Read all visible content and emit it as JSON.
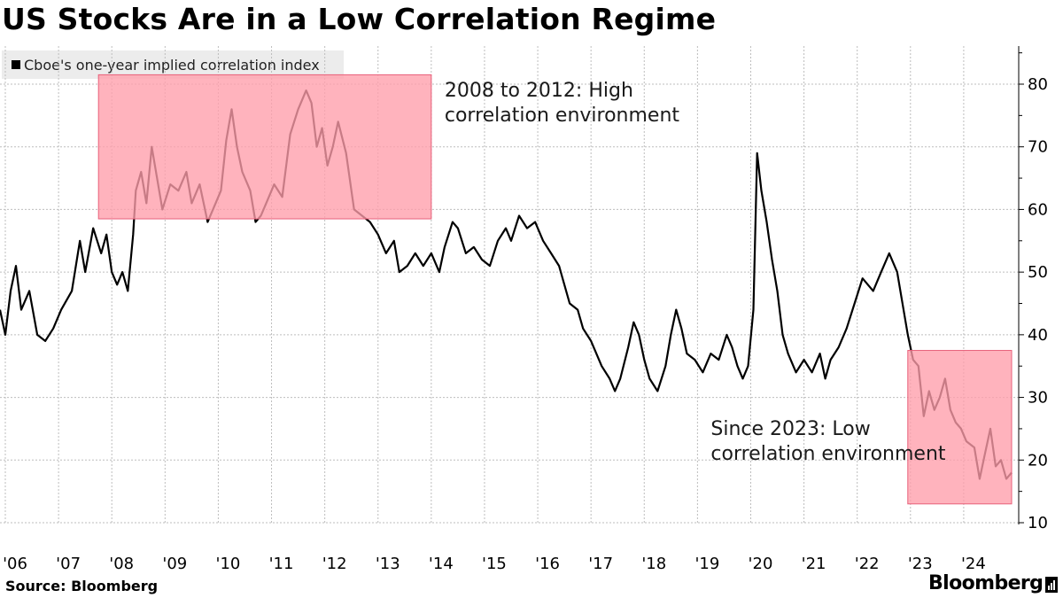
{
  "title": "US Stocks Are in a Low Correlation Regime",
  "source": "Source: Bloomberg",
  "brand": "Bloomberg",
  "chart_data": {
    "type": "line",
    "title": "US Stocks Are in a Low Correlation Regime",
    "legend": {
      "placement": "top-left",
      "entries": [
        "Cboe's one-year implied correlation index"
      ]
    },
    "grid": true,
    "x_ticks": [
      "'06",
      "'07",
      "'08",
      "'09",
      "'10",
      "'11",
      "'12",
      "'13",
      "'14",
      "'15",
      "'16",
      "'17",
      "'18",
      "'19",
      "'20",
      "'21",
      "'22",
      "'23",
      "'24"
    ],
    "xlim": [
      2006.0,
      2025.0
    ],
    "y_ticks": [
      10,
      20,
      30,
      40,
      50,
      60,
      70,
      80
    ],
    "ylim": [
      8,
      85
    ],
    "y_axis_side": "right",
    "line_color": "#000000",
    "highlight_color": "#ff9dab",
    "series": [
      {
        "name": "Cboe's one-year implied correlation index",
        "points": [
          [
            2006.0,
            44
          ],
          [
            2006.1,
            40
          ],
          [
            2006.2,
            47
          ],
          [
            2006.3,
            51
          ],
          [
            2006.4,
            44
          ],
          [
            2006.55,
            47
          ],
          [
            2006.7,
            40
          ],
          [
            2006.85,
            39
          ],
          [
            2007.0,
            41
          ],
          [
            2007.15,
            44
          ],
          [
            2007.35,
            47
          ],
          [
            2007.5,
            55
          ],
          [
            2007.6,
            50
          ],
          [
            2007.75,
            57
          ],
          [
            2007.9,
            53
          ],
          [
            2008.0,
            56
          ],
          [
            2008.1,
            50
          ],
          [
            2008.2,
            48
          ],
          [
            2008.3,
            50
          ],
          [
            2008.4,
            47
          ],
          [
            2008.5,
            56
          ],
          [
            2008.55,
            63
          ],
          [
            2008.65,
            66
          ],
          [
            2008.75,
            61
          ],
          [
            2008.85,
            70
          ],
          [
            2008.95,
            65
          ],
          [
            2009.05,
            60
          ],
          [
            2009.2,
            64
          ],
          [
            2009.35,
            63
          ],
          [
            2009.5,
            66
          ],
          [
            2009.6,
            61
          ],
          [
            2009.75,
            64
          ],
          [
            2009.9,
            58
          ],
          [
            2010.05,
            61
          ],
          [
            2010.15,
            63
          ],
          [
            2010.25,
            71
          ],
          [
            2010.35,
            76
          ],
          [
            2010.45,
            70
          ],
          [
            2010.55,
            66
          ],
          [
            2010.7,
            63
          ],
          [
            2010.8,
            58
          ],
          [
            2010.9,
            59
          ],
          [
            2011.0,
            61
          ],
          [
            2011.15,
            64
          ],
          [
            2011.3,
            62
          ],
          [
            2011.45,
            72
          ],
          [
            2011.6,
            76
          ],
          [
            2011.75,
            79
          ],
          [
            2011.85,
            77
          ],
          [
            2011.95,
            70
          ],
          [
            2012.05,
            73
          ],
          [
            2012.15,
            67
          ],
          [
            2012.25,
            70
          ],
          [
            2012.35,
            74
          ],
          [
            2012.5,
            69
          ],
          [
            2012.65,
            60
          ],
          [
            2012.8,
            59
          ],
          [
            2012.95,
            58
          ],
          [
            2013.1,
            56
          ],
          [
            2013.25,
            53
          ],
          [
            2013.4,
            55
          ],
          [
            2013.5,
            50
          ],
          [
            2013.65,
            51
          ],
          [
            2013.8,
            53
          ],
          [
            2013.95,
            51
          ],
          [
            2014.1,
            53
          ],
          [
            2014.25,
            50
          ],
          [
            2014.35,
            54
          ],
          [
            2014.5,
            58
          ],
          [
            2014.6,
            57
          ],
          [
            2014.75,
            53
          ],
          [
            2014.9,
            54
          ],
          [
            2015.05,
            52
          ],
          [
            2015.2,
            51
          ],
          [
            2015.35,
            55
          ],
          [
            2015.5,
            57
          ],
          [
            2015.6,
            55
          ],
          [
            2015.75,
            59
          ],
          [
            2015.9,
            57
          ],
          [
            2016.05,
            58
          ],
          [
            2016.2,
            55
          ],
          [
            2016.35,
            53
          ],
          [
            2016.5,
            51
          ],
          [
            2016.6,
            48
          ],
          [
            2016.7,
            45
          ],
          [
            2016.85,
            44
          ],
          [
            2016.95,
            41
          ],
          [
            2017.1,
            39
          ],
          [
            2017.2,
            37
          ],
          [
            2017.3,
            35
          ],
          [
            2017.45,
            33
          ],
          [
            2017.55,
            31
          ],
          [
            2017.65,
            33
          ],
          [
            2017.8,
            38
          ],
          [
            2017.9,
            42
          ],
          [
            2018.0,
            40
          ],
          [
            2018.1,
            36
          ],
          [
            2018.2,
            33
          ],
          [
            2018.35,
            31
          ],
          [
            2018.5,
            35
          ],
          [
            2018.6,
            40
          ],
          [
            2018.7,
            44
          ],
          [
            2018.8,
            41
          ],
          [
            2018.9,
            37
          ],
          [
            2019.05,
            36
          ],
          [
            2019.2,
            34
          ],
          [
            2019.35,
            37
          ],
          [
            2019.5,
            36
          ],
          [
            2019.65,
            40
          ],
          [
            2019.75,
            38
          ],
          [
            2019.85,
            35
          ],
          [
            2019.95,
            33
          ],
          [
            2020.05,
            35
          ],
          [
            2020.15,
            44
          ],
          [
            2020.22,
            69
          ],
          [
            2020.3,
            63
          ],
          [
            2020.4,
            58
          ],
          [
            2020.5,
            52
          ],
          [
            2020.6,
            47
          ],
          [
            2020.7,
            40
          ],
          [
            2020.8,
            37
          ],
          [
            2020.95,
            34
          ],
          [
            2021.1,
            36
          ],
          [
            2021.25,
            34
          ],
          [
            2021.4,
            37
          ],
          [
            2021.5,
            33
          ],
          [
            2021.6,
            36
          ],
          [
            2021.75,
            38
          ],
          [
            2021.9,
            41
          ],
          [
            2022.05,
            45
          ],
          [
            2022.2,
            49
          ],
          [
            2022.3,
            48
          ],
          [
            2022.4,
            47
          ],
          [
            2022.55,
            50
          ],
          [
            2022.7,
            53
          ],
          [
            2022.85,
            50
          ],
          [
            2022.95,
            45
          ],
          [
            2023.05,
            40
          ],
          [
            2023.15,
            36
          ],
          [
            2023.25,
            35
          ],
          [
            2023.35,
            27
          ],
          [
            2023.45,
            31
          ],
          [
            2023.55,
            28
          ],
          [
            2023.65,
            30
          ],
          [
            2023.75,
            33
          ],
          [
            2023.85,
            28
          ],
          [
            2023.95,
            26
          ],
          [
            2024.05,
            25
          ],
          [
            2024.15,
            23
          ],
          [
            2024.3,
            22
          ],
          [
            2024.4,
            17
          ],
          [
            2024.5,
            21
          ],
          [
            2024.6,
            25
          ],
          [
            2024.7,
            19
          ],
          [
            2024.8,
            20
          ],
          [
            2024.9,
            17
          ],
          [
            2025.0,
            18
          ]
        ]
      }
    ],
    "highlights": [
      {
        "x_range": [
          2007.85,
          2014.1
        ],
        "y_range": [
          58.5,
          81.5
        ]
      },
      {
        "x_range": [
          2023.05,
          2025.0
        ],
        "y_range": [
          13,
          37.5
        ]
      }
    ],
    "annotations": [
      {
        "lines": [
          "2008 to 2012: High",
          "correlation environment"
        ],
        "x": 2014.35,
        "y": 78
      },
      {
        "lines": [
          "Since 2023: Low",
          "correlation environment"
        ],
        "x": 2019.35,
        "y": 24
      }
    ]
  }
}
